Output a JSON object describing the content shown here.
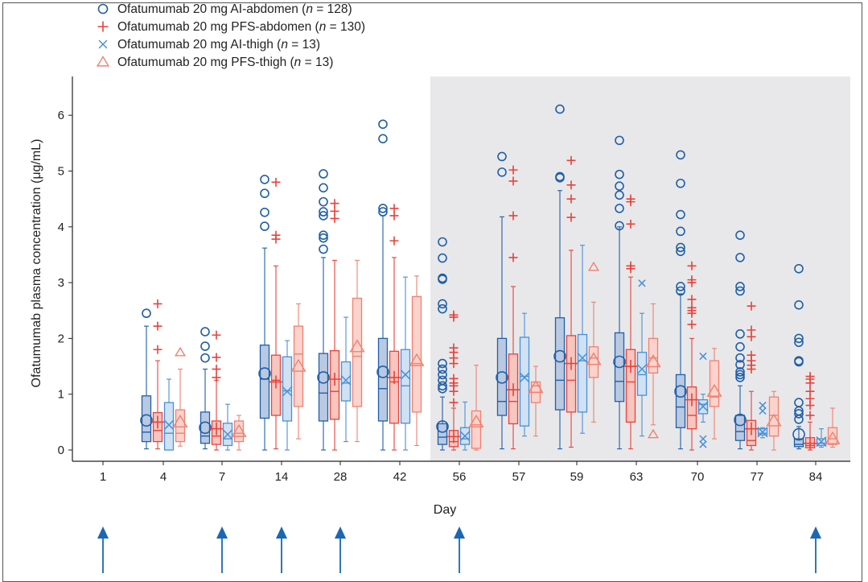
{
  "chart_data": {
    "type": "box",
    "xlabel": "Day",
    "ylabel": "Ofatumumab plasma concentration (μg/mL)",
    "ylim": [
      0,
      6.6
    ],
    "yticks": [
      0,
      1,
      2,
      3,
      4,
      5,
      6
    ],
    "categories": [
      "1",
      "4",
      "7",
      "14",
      "28",
      "42",
      "56",
      "57",
      "59",
      "63",
      "70",
      "77",
      "84"
    ],
    "shaded_region": {
      "from_category": "56",
      "to_category": "84"
    },
    "dosing_arrows_at_days": [
      "1",
      "7",
      "14",
      "28",
      "56",
      "84"
    ],
    "legend_position": "top-left",
    "series": [
      {
        "name_prefix": "Ofatumumab 20 mg AI-abdomen (",
        "n_label": "n",
        "n_suffix": " = 128)",
        "marker": "circle",
        "color": "#1f5fa8",
        "fill": "#b9c9e2",
        "boxes": [
          null,
          {
            "min": 0.02,
            "q1": 0.15,
            "median": 0.32,
            "q3": 0.97,
            "max": 2.22,
            "mean": 0.53,
            "outliers": [
              2.45
            ]
          },
          {
            "min": 0.02,
            "q1": 0.12,
            "median": 0.25,
            "q3": 0.68,
            "max": 1.45,
            "mean": 0.4,
            "outliers": [
              1.65,
              1.86,
              2.12
            ]
          },
          {
            "min": 0.0,
            "q1": 0.57,
            "median": 1.27,
            "q3": 1.88,
            "max": 3.62,
            "mean": 1.37,
            "outliers": [
              4.01,
              4.26,
              4.6,
              4.85
            ]
          },
          {
            "min": 0.0,
            "q1": 0.52,
            "median": 1.02,
            "q3": 1.73,
            "max": 3.45,
            "mean": 1.3,
            "outliers": [
              3.6,
              3.8,
              3.85,
              4.2,
              4.27,
              4.45,
              4.7,
              4.95
            ]
          },
          {
            "min": 0.0,
            "q1": 0.52,
            "median": 1.1,
            "q3": 2.0,
            "max": 4.2,
            "mean": 1.4,
            "outliers": [
              4.27,
              4.33,
              5.58,
              5.84
            ]
          },
          {
            "min": 0.0,
            "q1": 0.1,
            "median": 0.23,
            "q3": 0.47,
            "max": 0.95,
            "mean": 0.42,
            "outliers": [
              1.1,
              1.15,
              1.25,
              1.35,
              1.45,
              1.55,
              2.53,
              2.62,
              3.06,
              3.08,
              3.44,
              3.73
            ]
          },
          {
            "min": 0.02,
            "q1": 0.62,
            "median": 0.87,
            "q3": 2.0,
            "max": 4.18,
            "mean": 1.3,
            "outliers": [
              4.98,
              5.26
            ]
          },
          {
            "min": 0.02,
            "q1": 0.72,
            "median": 1.25,
            "q3": 2.37,
            "max": 4.65,
            "mean": 1.68,
            "outliers": [
              4.88,
              4.9,
              6.11
            ]
          },
          {
            "min": 0.02,
            "q1": 0.87,
            "median": 1.23,
            "q3": 2.1,
            "max": 4.0,
            "mean": 1.58,
            "outliers": [
              4.02,
              4.33,
              4.57,
              4.73,
              4.94,
              5.55
            ]
          },
          {
            "min": 0.02,
            "q1": 0.4,
            "median": 0.77,
            "q3": 1.35,
            "max": 2.8,
            "mean": 1.05,
            "outliers": [
              2.85,
              2.93,
              3.56,
              3.63,
              3.92,
              4.22,
              4.78,
              5.29
            ]
          },
          {
            "min": 0.02,
            "q1": 0.17,
            "median": 0.33,
            "q3": 0.62,
            "max": 1.15,
            "mean": 0.54,
            "outliers": [
              1.3,
              1.35,
              1.4,
              1.53,
              1.65,
              1.85,
              2.08,
              2.85,
              2.93,
              3.45,
              3.85
            ]
          },
          {
            "min": 0.02,
            "q1": 0.06,
            "median": 0.1,
            "q3": 0.2,
            "max": 0.42,
            "mean": 0.28,
            "outliers": [
              0.55,
              0.65,
              0.7,
              0.85,
              1.58,
              1.6,
              1.93,
              2.0,
              2.6,
              3.25
            ]
          }
        ]
      },
      {
        "name_prefix": "Ofatumumab 20 mg PFS-abdomen (",
        "n_label": "n",
        "n_suffix": " = 130)",
        "marker": "plus",
        "color": "#e8423b",
        "fill": "#f6c6bf",
        "boxes": [
          null,
          {
            "min": 0.02,
            "q1": 0.15,
            "median": 0.35,
            "q3": 0.67,
            "max": 1.6,
            "mean": 0.5,
            "outliers": [
              1.8,
              2.22,
              2.62
            ]
          },
          {
            "min": 0.0,
            "q1": 0.1,
            "median": 0.25,
            "q3": 0.52,
            "max": 1.25,
            "mean": 0.38,
            "outliers": [
              1.3,
              1.45,
              1.66,
              2.06
            ]
          },
          {
            "min": 0.02,
            "q1": 0.62,
            "median": 1.25,
            "q3": 1.7,
            "max": 3.3,
            "mean": 1.22,
            "outliers": [
              3.78,
              3.85,
              4.8
            ]
          },
          {
            "min": 0.0,
            "q1": 0.55,
            "median": 1.05,
            "q3": 1.78,
            "max": 3.4,
            "mean": 1.27,
            "outliers": [
              4.15,
              4.28,
              4.42
            ]
          },
          {
            "min": 0.0,
            "q1": 0.48,
            "median": 1.22,
            "q3": 1.77,
            "max": 3.45,
            "mean": 1.3,
            "outliers": [
              3.75,
              4.2,
              4.33
            ]
          },
          {
            "min": 0.0,
            "q1": 0.06,
            "median": 0.15,
            "q3": 0.35,
            "max": 0.75,
            "mean": 0.24,
            "outliers": [
              0.85,
              1.05,
              1.15,
              1.2,
              1.28,
              1.55,
              1.65,
              1.75,
              1.83,
              2.38,
              2.42
            ]
          },
          {
            "min": 0.02,
            "q1": 0.47,
            "median": 0.87,
            "q3": 1.72,
            "max": 2.93,
            "mean": 1.08,
            "outliers": [
              3.45,
              4.2,
              4.82,
              5.02
            ]
          },
          {
            "min": 0.05,
            "q1": 0.68,
            "median": 1.25,
            "q3": 2.05,
            "max": 3.58,
            "mean": 1.55,
            "outliers": [
              4.17,
              4.5,
              4.75,
              5.19
            ]
          },
          {
            "min": 0.02,
            "q1": 0.5,
            "median": 1.22,
            "q3": 1.8,
            "max": 3.1,
            "mean": 1.5,
            "outliers": [
              3.25,
              3.3,
              4.05,
              4.45,
              4.5
            ]
          },
          {
            "min": 0.0,
            "q1": 0.38,
            "median": 0.62,
            "q3": 1.13,
            "max": 2.0,
            "mean": 0.9,
            "outliers": [
              2.25,
              2.45,
              2.5,
              2.55,
              2.7,
              3.0,
              3.05,
              3.3
            ]
          },
          {
            "min": 0.0,
            "q1": 0.08,
            "median": 0.17,
            "q3": 0.53,
            "max": 1.05,
            "mean": 0.38,
            "outliers": [
              1.45,
              1.52,
              1.6,
              1.7,
              2.03,
              2.15,
              2.58
            ]
          },
          {
            "min": 0.0,
            "q1": 0.04,
            "median": 0.08,
            "q3": 0.22,
            "max": 0.5,
            "mean": 0.12,
            "outliers": [
              0.62,
              0.8,
              0.92,
              1.05,
              1.2,
              1.27,
              1.32
            ]
          }
        ]
      },
      {
        "name_prefix": "Ofatumumab 20 mg AI-thigh (",
        "n_label": "n",
        "n_suffix": " = 13)",
        "marker": "x",
        "color": "#4a90d6",
        "fill": "#cfe1f3",
        "boxes": [
          null,
          {
            "min": 0.0,
            "q1": 0.0,
            "median": 0.3,
            "q3": 0.85,
            "max": 1.27,
            "mean": 0.45,
            "outliers": []
          },
          {
            "min": 0.0,
            "q1": 0.08,
            "median": 0.2,
            "q3": 0.48,
            "max": 0.82,
            "mean": 0.28,
            "outliers": []
          },
          {
            "min": 0.0,
            "q1": 0.52,
            "median": 1.06,
            "q3": 1.67,
            "max": 1.96,
            "mean": 1.05,
            "outliers": []
          },
          {
            "min": 0.15,
            "q1": 0.88,
            "median": 1.2,
            "q3": 1.58,
            "max": 2.38,
            "mean": 1.25,
            "outliers": []
          },
          {
            "min": 0.0,
            "q1": 0.48,
            "median": 1.15,
            "q3": 1.8,
            "max": 3.1,
            "mean": 1.35,
            "outliers": []
          },
          {
            "min": 0.0,
            "q1": 0.1,
            "median": 0.2,
            "q3": 0.4,
            "max": 0.86,
            "mean": 0.25,
            "outliers": []
          },
          {
            "min": 0.25,
            "q1": 0.43,
            "median": 1.32,
            "q3": 2.02,
            "max": 2.45,
            "mean": 1.3,
            "outliers": []
          },
          {
            "min": 0.3,
            "q1": 0.68,
            "median": 1.6,
            "q3": 2.07,
            "max": 3.67,
            "mean": 1.65,
            "outliers": []
          },
          {
            "min": 0.25,
            "q1": 0.98,
            "median": 1.35,
            "q3": 1.75,
            "max": 2.45,
            "mean": 1.45,
            "outliers": [
              2.99
            ]
          },
          {
            "min": 0.5,
            "q1": 0.65,
            "median": 0.82,
            "q3": 0.9,
            "max": 1.0,
            "mean": 0.78,
            "outliers": [
              0.1,
              0.2,
              1.68
            ]
          },
          {
            "min": 0.22,
            "q1": 0.27,
            "median": 0.3,
            "q3": 0.38,
            "max": 0.4,
            "mean": 0.32,
            "outliers": [
              0.7,
              0.8
            ]
          },
          {
            "min": 0.05,
            "q1": 0.08,
            "median": 0.12,
            "q3": 0.2,
            "max": 0.38,
            "mean": 0.15,
            "outliers": []
          }
        ]
      },
      {
        "name_prefix": "Ofatumumab 20 mg PFS-thigh (",
        "n_label": "n",
        "n_suffix": " = 13)",
        "marker": "triangle",
        "color": "#f08070",
        "fill": "#fbd3cc",
        "boxes": [
          null,
          {
            "min": 0.07,
            "q1": 0.15,
            "median": 0.3,
            "q3": 0.72,
            "max": 1.45,
            "mean": 0.5,
            "outliers": [
              1.75
            ]
          },
          {
            "min": 0.0,
            "q1": 0.15,
            "median": 0.3,
            "q3": 0.52,
            "max": 0.62,
            "mean": 0.33,
            "outliers": []
          },
          {
            "min": 0.2,
            "q1": 0.78,
            "median": 1.72,
            "q3": 2.22,
            "max": 2.62,
            "mean": 1.5,
            "outliers": []
          },
          {
            "min": 0.15,
            "q1": 0.78,
            "median": 1.68,
            "q3": 2.72,
            "max": 3.4,
            "mean": 1.85,
            "outliers": []
          },
          {
            "min": 0.08,
            "q1": 0.68,
            "median": 1.55,
            "q3": 2.75,
            "max": 3.12,
            "mean": 1.6,
            "outliers": []
          },
          {
            "min": 0.0,
            "q1": 0.03,
            "median": 0.45,
            "q3": 0.7,
            "max": 1.52,
            "mean": 0.5,
            "outliers": []
          },
          {
            "min": 0.25,
            "q1": 0.85,
            "median": 1.15,
            "q3": 1.22,
            "max": 1.5,
            "mean": 1.12,
            "outliers": []
          },
          {
            "min": 0.5,
            "q1": 1.3,
            "median": 1.65,
            "q3": 1.85,
            "max": 2.65,
            "mean": 1.62,
            "outliers": [
              3.28
            ]
          },
          {
            "min": 0.45,
            "q1": 1.38,
            "median": 1.65,
            "q3": 2.0,
            "max": 2.62,
            "mean": 1.58,
            "outliers": [
              0.28
            ]
          },
          {
            "min": 0.2,
            "q1": 0.78,
            "median": 0.95,
            "q3": 1.6,
            "max": 1.82,
            "mean": 1.05,
            "outliers": []
          },
          {
            "min": 0.0,
            "q1": 0.25,
            "median": 0.62,
            "q3": 0.95,
            "max": 1.05,
            "mean": 0.52,
            "outliers": []
          },
          {
            "min": 0.05,
            "q1": 0.1,
            "median": 0.2,
            "q3": 0.4,
            "max": 0.75,
            "mean": 0.2,
            "outliers": []
          }
        ]
      }
    ]
  }
}
